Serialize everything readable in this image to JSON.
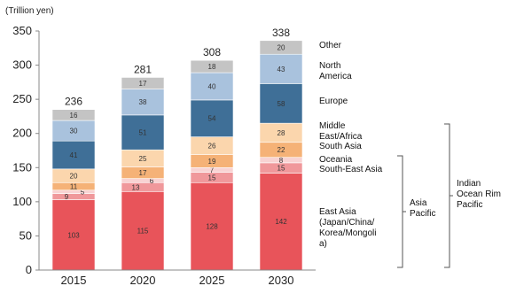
{
  "chart_data": {
    "type": "bar",
    "stacked": true,
    "unit_label": "(Trillion yen)",
    "categories": [
      "2015",
      "2020",
      "2025",
      "2030"
    ],
    "ylim": [
      0,
      350
    ],
    "yticks": [
      "0",
      "50",
      "100",
      "150",
      "200",
      "250",
      "300",
      "350"
    ],
    "totals": [
      "236",
      "281",
      "308",
      "338"
    ],
    "series": [
      {
        "name": "East Asia (Japan/China/ Korea/Mongoli a)",
        "legend_lines": [
          "East Asia",
          "(Japan/China/",
          "Korea/Mongoli",
          "a)"
        ],
        "color": "#e8545a",
        "values": [
          103,
          115,
          128,
          142
        ]
      },
      {
        "name": "South-East Asia",
        "legend_lines": [
          "South-East Asia"
        ],
        "color": "#f0989b",
        "values": [
          9,
          13,
          15,
          15
        ]
      },
      {
        "name": "Oceania",
        "legend_lines": [
          "Oceania"
        ],
        "color": "#f8d3d3",
        "values": [
          5,
          6,
          7,
          8
        ]
      },
      {
        "name": "South Asia",
        "legend_lines": [
          "South Asia"
        ],
        "color": "#f5b277",
        "values": [
          11,
          17,
          19,
          22
        ]
      },
      {
        "name": "Middle East/Africa",
        "legend_lines": [
          "Middle",
          "East/Africa"
        ],
        "color": "#fbd6ad",
        "values": [
          20,
          25,
          26,
          28
        ]
      },
      {
        "name": "Europe",
        "legend_lines": [
          "Europe"
        ],
        "color": "#3f6f97",
        "values": [
          41,
          51,
          54,
          58
        ]
      },
      {
        "name": "North America",
        "legend_lines": [
          "North",
          "America"
        ],
        "color": "#a9c2dd",
        "values": [
          30,
          38,
          40,
          43
        ]
      },
      {
        "name": "Other",
        "legend_lines": [
          "Other"
        ],
        "color": "#c4c4c4",
        "values": [
          16,
          17,
          18,
          20
        ]
      }
    ],
    "brackets": [
      {
        "lines": [
          "Asia",
          "Pacific"
        ]
      },
      {
        "lines": [
          "Indian",
          "Ocean Rim",
          "Pacific"
        ]
      }
    ],
    "grid": false
  }
}
